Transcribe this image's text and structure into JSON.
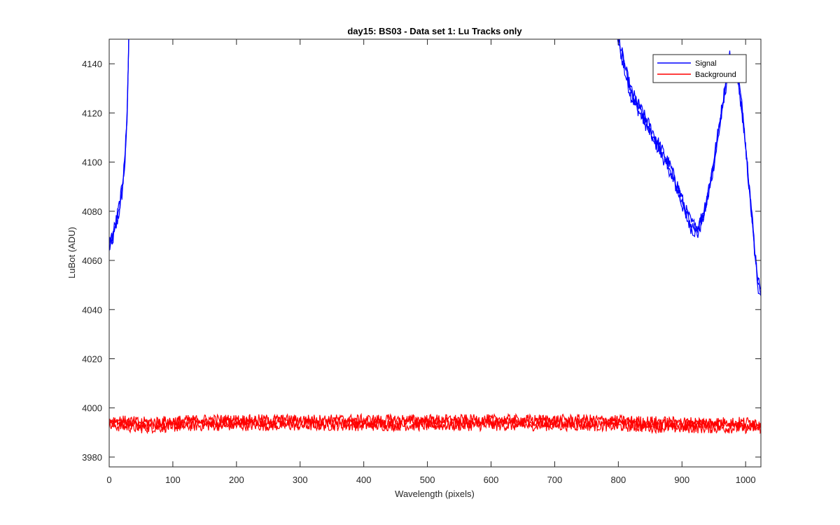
{
  "chart_data": {
    "type": "line",
    "title": "day15: BS03 - Data set 1: Lu Tracks only",
    "xlabel": "Wavelength (pixels)",
    "ylabel": "LuBot (ADU)",
    "xlim": [
      0,
      1024
    ],
    "ylim": [
      3976,
      4150
    ],
    "xticks": [
      0,
      100,
      200,
      300,
      400,
      500,
      600,
      700,
      800,
      900,
      1000
    ],
    "yticks": [
      3980,
      4000,
      4020,
      4040,
      4060,
      4080,
      4100,
      4120,
      4140
    ],
    "grid": false,
    "legend": {
      "placement": "top-right",
      "entries": [
        "Signal",
        "Background"
      ]
    },
    "series": [
      {
        "name": "Signal",
        "color": "#0000ff",
        "points": [
          [
            0,
            4066
          ],
          [
            5,
            4069
          ],
          [
            10,
            4074
          ],
          [
            15,
            4080
          ],
          [
            20,
            4088
          ],
          [
            25,
            4102
          ],
          [
            28,
            4118
          ],
          [
            30,
            4140
          ],
          [
            32,
            4170
          ],
          [
            790,
            4170
          ],
          [
            800,
            4150
          ],
          [
            810,
            4138
          ],
          [
            820,
            4128
          ],
          [
            840,
            4118
          ],
          [
            860,
            4108
          ],
          [
            880,
            4098
          ],
          [
            895,
            4088
          ],
          [
            905,
            4080
          ],
          [
            915,
            4074
          ],
          [
            925,
            4072
          ],
          [
            935,
            4080
          ],
          [
            945,
            4092
          ],
          [
            955,
            4108
          ],
          [
            965,
            4125
          ],
          [
            975,
            4142
          ],
          [
            985,
            4140
          ],
          [
            995,
            4120
          ],
          [
            1005,
            4092
          ],
          [
            1015,
            4062
          ],
          [
            1020,
            4050
          ],
          [
            1024,
            4047
          ]
        ],
        "noise": 2.5,
        "traces": 3
      },
      {
        "name": "Background",
        "color": "#ff0000",
        "points": [
          [
            0,
            3994
          ],
          [
            50,
            3993
          ],
          [
            150,
            3994
          ],
          [
            300,
            3994
          ],
          [
            450,
            3994
          ],
          [
            600,
            3994
          ],
          [
            750,
            3994
          ],
          [
            900,
            3993
          ],
          [
            1024,
            3993
          ]
        ],
        "noise": 2.2,
        "traces": 3
      }
    ]
  }
}
